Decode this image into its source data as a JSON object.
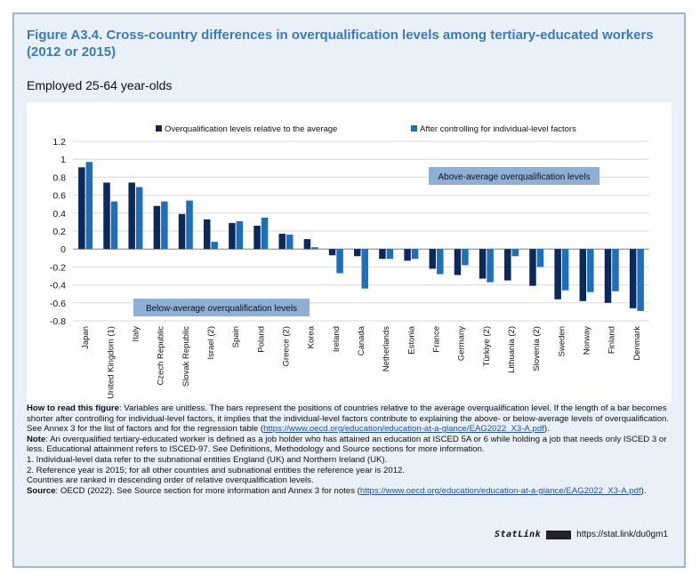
{
  "figure": {
    "title": "Figure A3.4. Cross-country differences in overqualification levels among tertiary-educated workers (2012 or 2015)",
    "subtitle": "Employed 25-64 year-olds"
  },
  "chart_data": {
    "type": "bar",
    "categories": [
      "Japan",
      "United Kingdom (1)",
      "Italy",
      "Czech Republic",
      "Slovak Republic",
      "Israel (2)",
      "Spain",
      "Poland",
      "Greece (2)",
      "Korea",
      "Ireland",
      "Canada",
      "Netherlands",
      "Estonia",
      "France",
      "Germany",
      "Türkiye (2)",
      "Lithuania (2)",
      "Slovenia (2)",
      "Sweden",
      "Norway",
      "Finland",
      "Denmark"
    ],
    "series": [
      {
        "name": "Overqualification levels relative to the average",
        "color": "#0b2a5c",
        "values": [
          0.91,
          0.74,
          0.74,
          0.48,
          0.39,
          0.33,
          0.29,
          0.26,
          0.17,
          0.11,
          -0.07,
          -0.08,
          -0.11,
          -0.13,
          -0.22,
          -0.29,
          -0.33,
          -0.35,
          -0.41,
          -0.56,
          -0.58,
          -0.6,
          -0.66
        ]
      },
      {
        "name": "After controlling for individual-level factors",
        "color": "#1f6fb8",
        "values": [
          0.97,
          0.53,
          0.69,
          0.53,
          0.54,
          0.08,
          0.31,
          0.35,
          0.16,
          0.02,
          -0.27,
          -0.44,
          -0.11,
          -0.11,
          -0.28,
          -0.18,
          -0.37,
          -0.08,
          -0.2,
          -0.46,
          -0.48,
          -0.47,
          -0.69
        ]
      }
    ],
    "ylim": [
      -0.8,
      1.2
    ],
    "yticks": [
      1.2,
      1,
      0.8,
      0.6,
      0.4,
      0.2,
      0,
      -0.2,
      -0.4,
      -0.6,
      -0.8
    ],
    "grid": true,
    "legend_position": "top",
    "annotations": {
      "above": "Above-average overqualification levels",
      "below": "Below-average overqualification levels"
    }
  },
  "notes": {
    "how_to_read_label": "How to read this figure",
    "how_to_read_text": ": Variables are unitless. The bars represent the positions of countries relative to the average overqualification level. If the length of a bar becomes shorter after controlling for individual-level factors, it implies that the individual-level factors contribute to explaining the above- or below-average levels of overqualification. See Annex 3 for the list of factors and for the regression table (",
    "link1": "https://www.oecd.org/education/education-at-a-glance/EAG2022_X3-A.pdf",
    "how_to_read_end": ").",
    "note_label": "Note",
    "note_text": ": An overqualified tertiary-educated worker is defined as a job holder who has attained an education at ISCED 5A or 6 while holding a job that needs only ISCED 3 or less. Educational attainment refers to ISCED-97. See Definitions, Methodology and Source sections for more information.",
    "note1": "1. Individual-level data refer to the subnational entities England (UK) and Northern Ireland (UK).",
    "note2": "2. Reference year is 2015; for all other countries and subnational entities the reference year is 2012.",
    "note3": "Countries are ranked in descending order of relative overqualification levels.",
    "source_label": "Source",
    "source_text": ": OECD (2022). See Source section for more information and Annex 3 for notes (",
    "link2": "https://www.oecd.org/education/education-at-a-glance/EAG2022_X3-A.pdf",
    "source_end": ")."
  },
  "statlink": {
    "brand": "StatLink",
    "url": "https://stat.link/du0gm1"
  }
}
